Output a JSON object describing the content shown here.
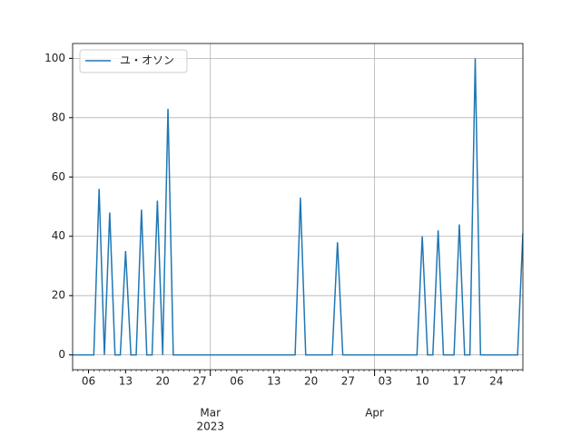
{
  "chart_data": {
    "type": "line",
    "x": [
      "2023-02-03",
      "2023-02-04",
      "2023-02-05",
      "2023-02-06",
      "2023-02-07",
      "2023-02-08",
      "2023-02-09",
      "2023-02-10",
      "2023-02-11",
      "2023-02-12",
      "2023-02-13",
      "2023-02-14",
      "2023-02-15",
      "2023-02-16",
      "2023-02-17",
      "2023-02-18",
      "2023-02-19",
      "2023-02-20",
      "2023-02-21",
      "2023-02-22",
      "2023-02-23",
      "2023-02-24",
      "2023-02-25",
      "2023-02-26",
      "2023-02-27",
      "2023-02-28",
      "2023-03-01",
      "2023-03-02",
      "2023-03-03",
      "2023-03-04",
      "2023-03-05",
      "2023-03-06",
      "2023-03-07",
      "2023-03-08",
      "2023-03-09",
      "2023-03-10",
      "2023-03-11",
      "2023-03-12",
      "2023-03-13",
      "2023-03-14",
      "2023-03-15",
      "2023-03-16",
      "2023-03-17",
      "2023-03-18",
      "2023-03-19",
      "2023-03-20",
      "2023-03-21",
      "2023-03-22",
      "2023-03-23",
      "2023-03-24",
      "2023-03-25",
      "2023-03-26",
      "2023-03-27",
      "2023-03-28",
      "2023-03-29",
      "2023-03-30",
      "2023-03-31",
      "2023-04-01",
      "2023-04-02",
      "2023-04-03",
      "2023-04-04",
      "2023-04-05",
      "2023-04-06",
      "2023-04-07",
      "2023-04-08",
      "2023-04-09",
      "2023-04-10",
      "2023-04-11",
      "2023-04-12",
      "2023-04-13",
      "2023-04-14",
      "2023-04-15",
      "2023-04-16",
      "2023-04-17",
      "2023-04-18",
      "2023-04-19",
      "2023-04-20",
      "2023-04-21",
      "2023-04-22",
      "2023-04-23",
      "2023-04-24",
      "2023-04-25",
      "2023-04-26",
      "2023-04-27",
      "2023-04-28",
      "2023-04-29"
    ],
    "series": [
      {
        "name": "ユ・オソン",
        "color": "#1f77b4",
        "values": [
          0,
          0,
          0,
          0,
          0,
          56,
          0,
          48,
          0,
          0,
          35,
          0,
          0,
          49,
          0,
          0,
          52,
          0,
          83,
          0,
          0,
          0,
          0,
          0,
          0,
          0,
          0,
          0,
          0,
          0,
          0,
          0,
          0,
          0,
          0,
          0,
          0,
          0,
          0,
          0,
          0,
          0,
          0,
          53,
          0,
          0,
          0,
          0,
          0,
          0,
          38,
          0,
          0,
          0,
          0,
          0,
          0,
          0,
          0,
          0,
          0,
          0,
          0,
          0,
          0,
          0,
          40,
          0,
          0,
          42,
          0,
          0,
          0,
          44,
          0,
          0,
          100,
          0,
          0,
          0,
          0,
          0,
          0,
          0,
          0,
          41
        ]
      }
    ],
    "xlim": [
      "2023-02-03",
      "2023-04-29"
    ],
    "ylim": [
      -5,
      105
    ],
    "yticks": [
      0,
      20,
      40,
      60,
      80,
      100
    ],
    "xticks": [
      {
        "value": "2023-02-06",
        "label": "06"
      },
      {
        "value": "2023-02-13",
        "label": "13"
      },
      {
        "value": "2023-02-20",
        "label": "20"
      },
      {
        "value": "2023-02-27",
        "label": "27"
      },
      {
        "value": "2023-03-06",
        "label": "06"
      },
      {
        "value": "2023-03-13",
        "label": "13"
      },
      {
        "value": "2023-03-20",
        "label": "20"
      },
      {
        "value": "2023-03-27",
        "label": "27"
      },
      {
        "value": "2023-04-03",
        "label": "03"
      },
      {
        "value": "2023-04-10",
        "label": "10"
      },
      {
        "value": "2023-04-17",
        "label": "17"
      },
      {
        "value": "2023-04-24",
        "label": "24"
      }
    ],
    "xticks_major": [
      {
        "value": "2023-03-01",
        "label": "Mar"
      },
      {
        "value": "2023-04-01",
        "label": "Apr"
      }
    ],
    "x_offset_label": "2023",
    "grid": true,
    "legend": "upper left"
  }
}
